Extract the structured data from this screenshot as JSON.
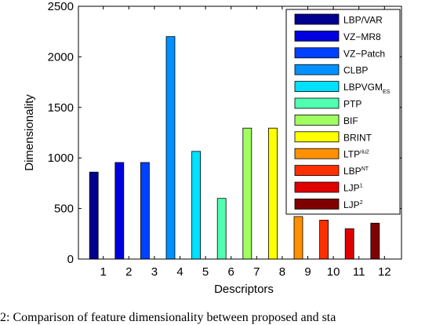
{
  "chart_data": {
    "type": "bar",
    "categories": [
      "1",
      "2",
      "3",
      "4",
      "5",
      "6",
      "7",
      "8",
      "9",
      "10",
      "11",
      "12"
    ],
    "values": [
      860,
      955,
      955,
      2200,
      1065,
      600,
      1295,
      1295,
      420,
      385,
      300,
      355
    ],
    "colors": [
      "#00008f",
      "#0000df",
      "#0040ff",
      "#0090ff",
      "#00e0ff",
      "#50ffaf",
      "#a0ff60",
      "#ffff00",
      "#ff9000",
      "#ff3000",
      "#df0000",
      "#800000"
    ],
    "xlabel": "Descriptors",
    "ylabel": "Dimensionality",
    "ylim": [
      0,
      2500
    ],
    "yticks": [
      0,
      500,
      1000,
      1500,
      2000,
      2500
    ],
    "grid": false,
    "legend_position": "top-right",
    "legend": [
      {
        "label": "LBP/VAR",
        "sup": "",
        "sub": ""
      },
      {
        "label": "VZ−MR8",
        "sup": "",
        "sub": ""
      },
      {
        "label": "VZ−Patch",
        "sup": "",
        "sub": ""
      },
      {
        "label": "CLBP",
        "sup": "",
        "sub": ""
      },
      {
        "label": "LBPVGM",
        "sup": "",
        "sub": "ES"
      },
      {
        "label": "PTP",
        "sup": "",
        "sub": ""
      },
      {
        "label": "BIF",
        "sup": "",
        "sub": ""
      },
      {
        "label": "BRINT",
        "sup": "",
        "sub": ""
      },
      {
        "label": "LTP",
        "sup": "riu2",
        "sub": ""
      },
      {
        "label": "LBP",
        "sup": "NT",
        "sub": ""
      },
      {
        "label": "LJP",
        "sup": "1",
        "sub": ""
      },
      {
        "label": "LJP",
        "sup": "2",
        "sub": ""
      }
    ]
  },
  "caption": "2: Comparison of feature dimensionality between proposed and sta"
}
